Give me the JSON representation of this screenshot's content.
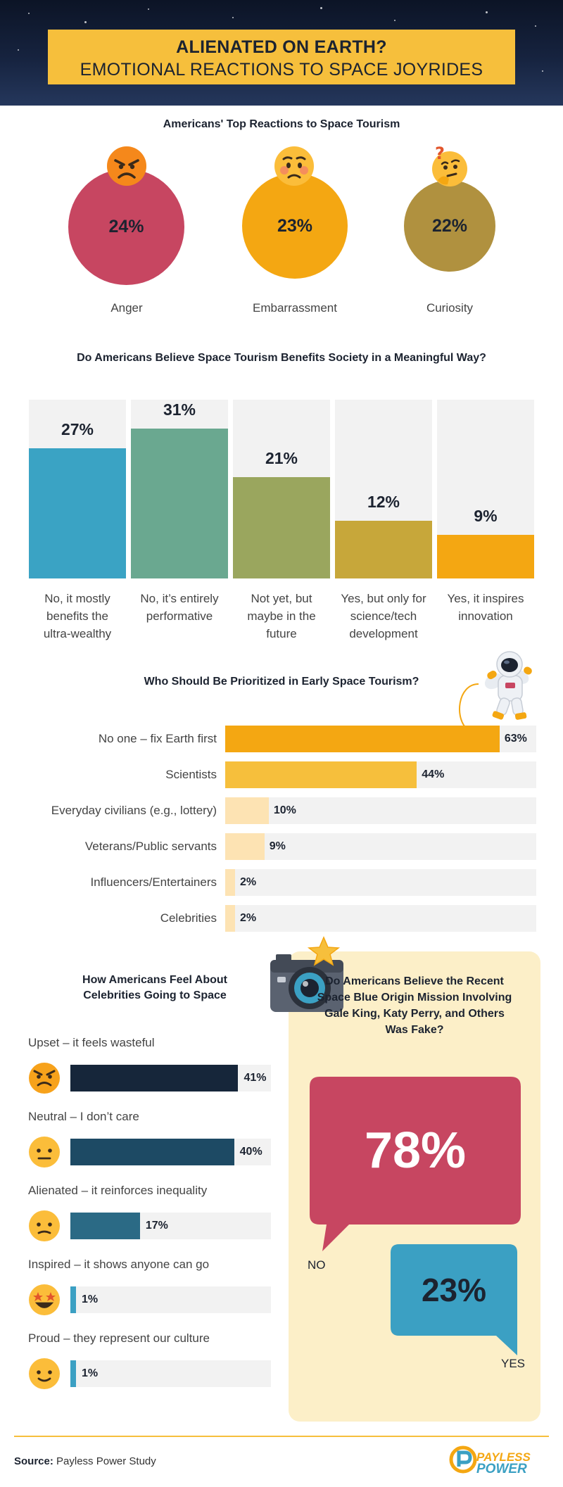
{
  "header": {
    "title_line1": "ALIENATED ON EARTH?",
    "title_line2": "EMOTIONAL REACTIONS TO SPACE JOYRIDES"
  },
  "reactions": {
    "heading": "Americans' Top Reactions to Space Tourism",
    "items": [
      {
        "label": "Anger",
        "value": "24%",
        "icon": "angry-face-icon",
        "color": "#c74661"
      },
      {
        "label": "Embarrassment",
        "value": "23%",
        "icon": "worried-face-icon",
        "color": "#f4a712"
      },
      {
        "label": "Curiosity",
        "value": "22%",
        "icon": "thinking-face-icon",
        "color": "#b0913f"
      }
    ]
  },
  "benefits": {
    "heading": "Do Americans Believe Space Tourism Benefits Society in a Meaningful Way?",
    "items": [
      {
        "line1": "No, it mostly",
        "line2": "benefits the",
        "line3": "ultra-wealthy",
        "value": "27%"
      },
      {
        "line1": "No, it’s entirely",
        "line2": "performative",
        "line3": "",
        "value": "31%"
      },
      {
        "line1": "Not yet, but",
        "line2": "maybe in the",
        "line3": "future",
        "value": "21%"
      },
      {
        "line1": "Yes, but only for",
        "line2": "science/tech",
        "line3": "development",
        "value": "12%"
      },
      {
        "line1": "Yes, it inspires",
        "line2": "innovation",
        "line3": "",
        "value": "9%"
      }
    ]
  },
  "priority": {
    "heading": "Who Should Be Prioritized in Early Space Tourism?",
    "icon": "astronaut-icon",
    "items": [
      {
        "label": "No one – fix Earth first",
        "value": "63%"
      },
      {
        "label": "Scientists",
        "value": "44%"
      },
      {
        "label": "Everyday civilians (e.g., lottery)",
        "value": "10%"
      },
      {
        "label": "Veterans/Public servants",
        "value": "9%"
      },
      {
        "label": "Influencers/Entertainers",
        "value": "2%"
      },
      {
        "label": "Celebrities",
        "value": "2%"
      }
    ]
  },
  "celebrities": {
    "heading_line1": "How Americans Feel About",
    "heading_line2": "Celebrities Going to Space",
    "items": [
      {
        "label": "Upset – it feels wasteful",
        "value": "41%",
        "icon": "angry-face-icon"
      },
      {
        "label": "Neutral – I don’t care",
        "value": "40%",
        "icon": "raised-eyebrow-face-icon"
      },
      {
        "label": "Alienated – it reinforces inequality",
        "value": "17%",
        "icon": "unamused-face-icon"
      },
      {
        "label": "Inspired – it shows anyone can go",
        "value": "1%",
        "icon": "star-struck-face-icon"
      },
      {
        "label": "Proud – they represent our culture",
        "value": "1%",
        "icon": "relieved-face-icon"
      }
    ]
  },
  "fake_mission": {
    "heading": "Do Americans Believe the Recent Space Blue Origin Mission Involving Gale King, Katy Perry, and Others Was Fake?",
    "no_value": "78%",
    "no_label": "NO",
    "yes_value": "23%",
    "yes_label": "YES",
    "icon": "camera-icon"
  },
  "footer": {
    "source_label": "Source:",
    "source_text": "Payless Power Study",
    "logo_line1": "PAYLESS",
    "logo_line2": "POWER"
  },
  "colors": {
    "header_bg": "#16233f",
    "banner": "#f6bf3c",
    "anger": "#c74661",
    "embarrassment": "#f4a712",
    "curiosity": "#b0913f",
    "panel_bg": "#fcefc8",
    "yes_bubble": "#3ba0c3"
  },
  "chart_data": [
    {
      "type": "bar",
      "title": "Americans' Top Reactions to Space Tourism",
      "categories": [
        "Anger",
        "Embarrassment",
        "Curiosity"
      ],
      "values": [
        24,
        23,
        22
      ],
      "unit": "%"
    },
    {
      "type": "bar",
      "title": "Do Americans Believe Space Tourism Benefits Society in a Meaningful Way?",
      "categories": [
        "No, it mostly benefits the ultra-wealthy",
        "No, it’s entirely performative",
        "Not yet, but maybe in the future",
        "Yes, but only for science/tech development",
        "Yes, it inspires innovation"
      ],
      "values": [
        27,
        31,
        21,
        12,
        9
      ],
      "colors": [
        "#3aa3c4",
        "#6aa890",
        "#9aa65e",
        "#c7a73a",
        "#f4a712"
      ],
      "ylim": [
        0,
        37
      ],
      "unit": "%"
    },
    {
      "type": "bar",
      "orientation": "horizontal",
      "title": "Who Should Be Prioritized in Early Space Tourism?",
      "categories": [
        "No one – fix Earth first",
        "Scientists",
        "Everyday civilians (e.g., lottery)",
        "Veterans/Public servants",
        "Influencers/Entertainers",
        "Celebrities"
      ],
      "values": [
        63,
        44,
        10,
        9,
        2,
        2
      ],
      "colors": [
        "#f4a712",
        "#f6bf3c",
        "#fde3b3",
        "#fde3b3",
        "#fde3b3",
        "#fde3b3"
      ],
      "xlim": [
        0,
        100
      ],
      "unit": "%"
    },
    {
      "type": "bar",
      "orientation": "horizontal",
      "title": "How Americans Feel About Celebrities Going to Space",
      "categories": [
        "Upset – it feels wasteful",
        "Neutral – I don’t care",
        "Alienated – it reinforces inequality",
        "Inspired – it shows anyone can go",
        "Proud – they represent our culture"
      ],
      "values": [
        41,
        40,
        17,
        1,
        1
      ],
      "colors": [
        "#16263a",
        "#1d4a64",
        "#2b6a85",
        "#3ba0c3",
        "#3ba0c3"
      ],
      "xlim": [
        0,
        50
      ],
      "unit": "%"
    },
    {
      "type": "bar",
      "title": "Do Americans Believe the Recent Space Blue Origin Mission Involving Gale King, Katy Perry, and Others Was Fake?",
      "categories": [
        "NO",
        "YES"
      ],
      "values": [
        78,
        23
      ],
      "colors": [
        "#c74661",
        "#3ba0c3"
      ],
      "unit": "%"
    }
  ]
}
